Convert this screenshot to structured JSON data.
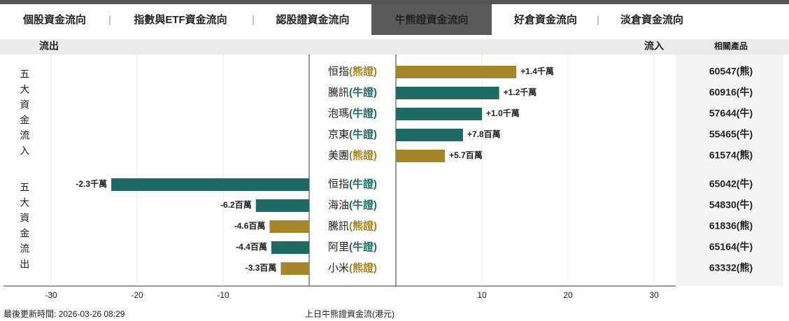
{
  "tabs": [
    "個股資金流向",
    "指數與ETF資金流向",
    "認股證資金流向",
    "牛熊證資金流向",
    "好倉資金流向",
    "淡倉資金流向"
  ],
  "active_tab": 3,
  "chart_data": {
    "type": "bar",
    "orientation": "horizontal",
    "header_left": "流出",
    "header_right": "流入",
    "header_products": "相關產品",
    "sections": [
      "五大資金流入",
      "五大資金流出"
    ],
    "categories": [
      "恒指",
      "騰訊",
      "泡瑪",
      "京東",
      "美團",
      "恒指",
      "海油",
      "騰訊",
      "阿里",
      "小米"
    ],
    "category_tags": [
      "(熊證)",
      "(牛證)",
      "(牛證)",
      "(牛證)",
      "(熊證)",
      "(牛證)",
      "(牛證)",
      "(熊證)",
      "(牛證)",
      "(熊證)"
    ],
    "values": [
      14,
      12,
      10,
      7.8,
      5.7,
      -23,
      -6.2,
      -4.6,
      -4.4,
      -3.3
    ],
    "value_labels": [
      "+1.4千萬",
      "+1.2千萬",
      "+1.0千萬",
      "+7.8百萬",
      "+5.7百萬",
      "-2.3千萬",
      "-6.2百萬",
      "-4.6百萬",
      "-4.4百萬",
      "-3.3百萬"
    ],
    "products": [
      "60547(熊)",
      "60916(牛)",
      "57644(牛)",
      "55465(牛)",
      "61574(熊)",
      "65042(牛)",
      "54830(牛)",
      "61836(熊)",
      "65164(牛)",
      "63332(熊)"
    ],
    "colors": [
      "#a5852a",
      "#1f6b63",
      "#1f6b63",
      "#1f6b63",
      "#a5852a",
      "#1f6b63",
      "#1f6b63",
      "#a5852a",
      "#1f6b63",
      "#a5852a"
    ],
    "xlim": [
      -35,
      32.5
    ],
    "xticks": [
      -30,
      -20,
      -10,
      10,
      20,
      30
    ],
    "grid": true,
    "footer_left": "最後更新時間: 2026-03-26 08:29",
    "footer_center": "上日牛熊證資金流(港元)"
  }
}
